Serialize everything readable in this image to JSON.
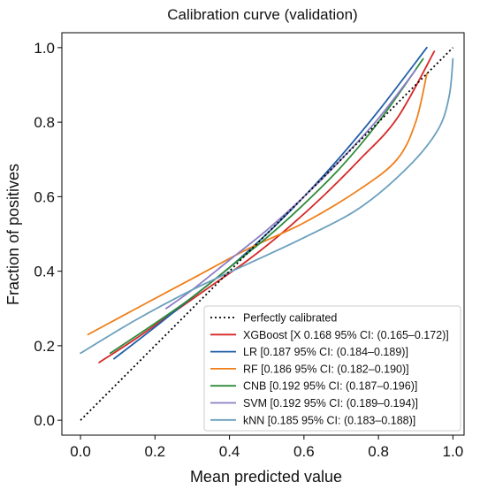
{
  "chart_data": {
    "type": "line",
    "title": "Calibration curve (validation)",
    "xlabel": "Mean predicted value",
    "ylabel": "Fraction of positives",
    "xlim": [
      -0.05,
      1.03
    ],
    "ylim": [
      -0.04,
      1.04
    ],
    "xticks": [
      "0.0",
      "0.2",
      "0.4",
      "0.6",
      "0.8",
      "1.0"
    ],
    "yticks": [
      "0.0",
      "0.2",
      "0.4",
      "0.6",
      "0.8",
      "1.0"
    ],
    "grid": false,
    "legend_position": "lower-right",
    "reference": {
      "name": "Perfectly calibrated",
      "color": "#000000",
      "style": "dotted",
      "x": [
        0,
        1
      ],
      "y": [
        0,
        1
      ]
    },
    "series": [
      {
        "name": "XGBoost [X 0.168 95% CI: (0.165–0.172)]",
        "color": "#d62728",
        "x": [
          0.05,
          0.15,
          0.25,
          0.35,
          0.45,
          0.55,
          0.65,
          0.75,
          0.85,
          0.95
        ],
        "y": [
          0.155,
          0.22,
          0.29,
          0.36,
          0.43,
          0.51,
          0.6,
          0.7,
          0.81,
          0.99
        ]
      },
      {
        "name": "LR [0.187 95% CI: (0.184–0.189)]",
        "color": "#1f5fa8",
        "x": [
          0.09,
          0.2,
          0.3,
          0.4,
          0.5,
          0.6,
          0.7,
          0.8,
          0.93
        ],
        "y": [
          0.165,
          0.25,
          0.33,
          0.41,
          0.5,
          0.6,
          0.71,
          0.83,
          1.0
        ]
      },
      {
        "name": "RF [0.186 95% CI: (0.182–0.190)]",
        "color": "#ef7f1a",
        "x": [
          0.02,
          0.15,
          0.3,
          0.45,
          0.6,
          0.75,
          0.85,
          0.9,
          0.93
        ],
        "y": [
          0.23,
          0.3,
          0.38,
          0.46,
          0.53,
          0.62,
          0.7,
          0.8,
          0.93
        ]
      },
      {
        "name": "CNB [0.192 95% CI: (0.187–0.196)]",
        "color": "#2e8b3a",
        "x": [
          0.08,
          0.2,
          0.3,
          0.4,
          0.5,
          0.6,
          0.7,
          0.8,
          0.92
        ],
        "y": [
          0.18,
          0.26,
          0.33,
          0.41,
          0.49,
          0.58,
          0.68,
          0.8,
          0.97
        ]
      },
      {
        "name": "SVM [0.192 95% CI: (0.189–0.194)]",
        "color": "#8b7ec4",
        "x": [
          0.23,
          0.3,
          0.4,
          0.5,
          0.6,
          0.7,
          0.8,
          0.9
        ],
        "y": [
          0.3,
          0.35,
          0.43,
          0.51,
          0.6,
          0.7,
          0.81,
          0.94
        ]
      },
      {
        "name": "kNN [0.185 95% CI: (0.183–0.188)]",
        "color": "#6a9fbd",
        "x": [
          0.0,
          0.15,
          0.3,
          0.45,
          0.6,
          0.75,
          0.88,
          0.96,
          0.99,
          1.0
        ],
        "y": [
          0.18,
          0.27,
          0.35,
          0.42,
          0.49,
          0.57,
          0.68,
          0.78,
          0.87,
          0.97
        ]
      }
    ]
  }
}
